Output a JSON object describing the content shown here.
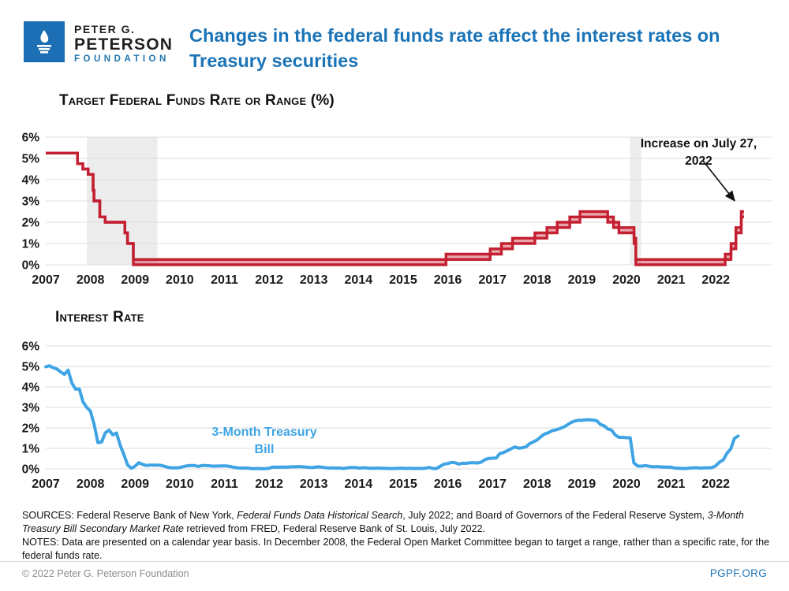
{
  "header": {
    "logo": {
      "line1": "PETER G.",
      "line2": "PETERSON",
      "line3": "FOUNDATION"
    },
    "title": "Changes in the federal funds rate affect the interest rates on Treasury securities"
  },
  "chart_data": [
    {
      "type": "step-area-range",
      "title": "Target Federal Funds Rate or Range (%)",
      "y_ticks": [
        "6%",
        "5%",
        "4%",
        "3%",
        "2%",
        "1%",
        "0%"
      ],
      "x_ticks": [
        2007,
        2008,
        2009,
        2010,
        2011,
        2012,
        2013,
        2014,
        2015,
        2016,
        2017,
        2018,
        2019,
        2020,
        2021,
        2022
      ],
      "ylim": [
        0,
        6
      ],
      "xlim": [
        2007,
        2023.25
      ],
      "grid": true,
      "line_color": "#C41F30",
      "fill_color": "rgba(200,40,55,0.42)",
      "recession_band_color": "#ECECEC",
      "recession_bands": [
        [
          2007.92,
          2009.5
        ],
        [
          2020.08,
          2020.33
        ]
      ],
      "annotation": {
        "text": "Increase on July 27, 2022",
        "points_to_value": 2.5
      },
      "series": {
        "name": "Target Federal Funds Rate or Range (%)",
        "x": [
          2007.0,
          2007.71,
          2007.83,
          2007.95,
          2008.06,
          2008.08,
          2008.21,
          2008.33,
          2008.77,
          2008.83,
          2008.96,
          2015.96,
          2016.95,
          2017.2,
          2017.45,
          2017.95,
          2018.22,
          2018.45,
          2018.73,
          2018.96,
          2019.58,
          2019.71,
          2019.83,
          2020.17,
          2020.21,
          2022.21,
          2022.34,
          2022.45,
          2022.57
        ],
        "lower": [
          5.25,
          4.75,
          4.5,
          4.25,
          3.5,
          3.0,
          2.25,
          2.0,
          1.5,
          1.0,
          0.0,
          0.25,
          0.5,
          0.75,
          1.0,
          1.25,
          1.5,
          1.75,
          2.0,
          2.25,
          2.0,
          1.75,
          1.5,
          1.0,
          0.0,
          0.25,
          0.75,
          1.5,
          2.25
        ],
        "upper": [
          5.25,
          4.75,
          4.5,
          4.25,
          3.5,
          3.0,
          2.25,
          2.0,
          1.5,
          1.0,
          0.25,
          0.5,
          0.75,
          1.0,
          1.25,
          1.5,
          1.75,
          2.0,
          2.25,
          2.5,
          2.25,
          2.0,
          1.75,
          1.25,
          0.25,
          0.5,
          1.0,
          1.75,
          2.5
        ],
        "x_end": 2022.63
      }
    },
    {
      "type": "line",
      "title": "Interest Rate",
      "series_label": "3-Month Treasury Bill",
      "y_ticks": [
        "6%",
        "5%",
        "4%",
        "3%",
        "2%",
        "1%",
        "0%"
      ],
      "x_ticks": [
        2007,
        2008,
        2009,
        2010,
        2011,
        2012,
        2013,
        2014,
        2015,
        2016,
        2017,
        2018,
        2019,
        2020,
        2021,
        2022
      ],
      "ylim": [
        0,
        6
      ],
      "xlim": [
        2007,
        2023.25
      ],
      "grid": true,
      "line_color": "#3FA4E4",
      "x_start": 2007,
      "x_step_months": 1,
      "values": [
        4.98,
        5.03,
        4.94,
        4.87,
        4.73,
        4.61,
        4.82,
        4.2,
        3.89,
        3.9,
        3.27,
        3.0,
        2.82,
        2.17,
        1.28,
        1.31,
        1.76,
        1.89,
        1.66,
        1.75,
        1.15,
        0.69,
        0.19,
        0.03,
        0.13,
        0.3,
        0.22,
        0.16,
        0.18,
        0.18,
        0.18,
        0.17,
        0.12,
        0.07,
        0.05,
        0.05,
        0.06,
        0.11,
        0.15,
        0.16,
        0.16,
        0.12,
        0.16,
        0.16,
        0.15,
        0.13,
        0.14,
        0.14,
        0.15,
        0.13,
        0.1,
        0.06,
        0.04,
        0.04,
        0.04,
        0.02,
        0.01,
        0.02,
        0.01,
        0.01,
        0.03,
        0.09,
        0.08,
        0.08,
        0.09,
        0.09,
        0.1,
        0.1,
        0.11,
        0.1,
        0.09,
        0.07,
        0.07,
        0.1,
        0.09,
        0.06,
        0.04,
        0.05,
        0.04,
        0.04,
        0.02,
        0.05,
        0.07,
        0.07,
        0.04,
        0.05,
        0.05,
        0.03,
        0.03,
        0.04,
        0.03,
        0.03,
        0.02,
        0.02,
        0.02,
        0.03,
        0.03,
        0.02,
        0.03,
        0.02,
        0.02,
        0.02,
        0.03,
        0.07,
        0.02,
        0.02,
        0.13,
        0.23,
        0.26,
        0.31,
        0.3,
        0.23,
        0.28,
        0.27,
        0.3,
        0.3,
        0.29,
        0.33,
        0.45,
        0.51,
        0.52,
        0.53,
        0.75,
        0.8,
        0.89,
        0.98,
        1.07,
        1.01,
        1.03,
        1.07,
        1.23,
        1.32,
        1.41,
        1.57,
        1.7,
        1.76,
        1.86,
        1.9,
        1.96,
        2.03,
        2.13,
        2.25,
        2.33,
        2.37,
        2.37,
        2.39,
        2.4,
        2.38,
        2.35,
        2.17,
        2.1,
        1.95,
        1.89,
        1.65,
        1.54,
        1.54,
        1.52,
        1.52,
        0.29,
        0.14,
        0.13,
        0.16,
        0.13,
        0.1,
        0.11,
        0.1,
        0.09,
        0.09,
        0.08,
        0.04,
        0.03,
        0.02,
        0.02,
        0.04,
        0.05,
        0.05,
        0.04,
        0.05,
        0.05,
        0.06,
        0.15,
        0.33,
        0.44,
        0.76,
        0.97,
        1.49,
        1.6
      ]
    }
  ],
  "footer": {
    "sources_segments": [
      {
        "t": "SOURCES: Federal Reserve Bank of New York, ",
        "i": false
      },
      {
        "t": "Federal Funds Data Historical Search",
        "i": true
      },
      {
        "t": ", July 2022; and Board of Governors of the Federal Reserve System, ",
        "i": false
      },
      {
        "t": "3-Month Treasury Bill Secondary Market Rate",
        "i": true
      },
      {
        "t": " retrieved from FRED, Federal Reserve Bank of St. Louis, July 2022.",
        "i": false
      }
    ],
    "notes": "NOTES: Data are presented on a calendar year basis. In December 2008, the Federal Open Market Committee began to target a range, rather than a specific rate, for the federal funds rate.",
    "copyright": "© 2022 Peter G. Peterson Foundation",
    "site": "PGPF.ORG"
  }
}
